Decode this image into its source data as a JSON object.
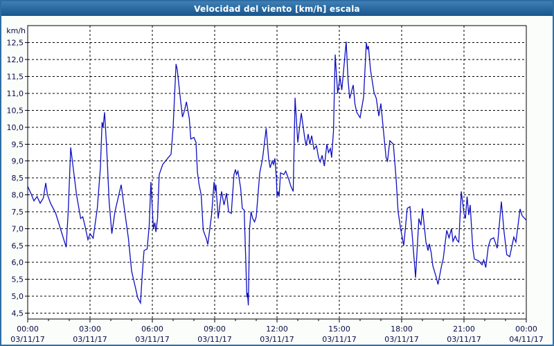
{
  "window": {
    "border_color": "#2e6da4",
    "background": "#fafdfa"
  },
  "chart_data": {
    "type": "line",
    "title": "Velocidad del viento [km/h] escala",
    "ylabel": "km/h",
    "xlabel": "",
    "legend": "none",
    "grid": "dashed-both-axes",
    "plot_bg": "#ffffff",
    "plot_border_color": "#000000",
    "line_color": "#0d0dc0",
    "xlim_hours": [
      0,
      24
    ],
    "ylim": [
      4.5,
      12.5
    ],
    "ytick_step": 0.5,
    "ytick_labels": [
      "4,5",
      "5,0",
      "5,5",
      "6,0",
      "6,5",
      "7,0",
      "7,5",
      "8,0",
      "8,5",
      "9,0",
      "9,5",
      "10,0",
      "10,5",
      "11,0",
      "11,5",
      "12,0",
      "12,5"
    ],
    "xticks": [
      {
        "t": 0,
        "time": "00:00",
        "date": "03/11/17"
      },
      {
        "t": 3,
        "time": "03:00",
        "date": "03/11/17"
      },
      {
        "t": 6,
        "time": "06:00",
        "date": "03/11/17"
      },
      {
        "t": 9,
        "time": "09:00",
        "date": "03/11/17"
      },
      {
        "t": 12,
        "time": "12:00",
        "date": "03/11/17"
      },
      {
        "t": 15,
        "time": "15:00",
        "date": "03/11/17"
      },
      {
        "t": 18,
        "time": "18:00",
        "date": "03/11/17"
      },
      {
        "t": 21,
        "time": "21:00",
        "date": "03/11/17"
      },
      {
        "t": 24,
        "time": "00:00",
        "date": "04/11/17"
      }
    ],
    "series": [
      {
        "name": "Velocidad del viento",
        "points": [
          [
            0,
            8.25
          ],
          [
            0.15,
            8.05
          ],
          [
            0.3,
            7.82
          ],
          [
            0.45,
            7.95
          ],
          [
            0.6,
            7.75
          ],
          [
            0.75,
            7.9
          ],
          [
            0.87,
            8.35
          ],
          [
            0.95,
            8.0
          ],
          [
            1.1,
            7.75
          ],
          [
            1.35,
            7.45
          ],
          [
            1.6,
            6.95
          ],
          [
            1.85,
            6.45
          ],
          [
            1.95,
            7.5
          ],
          [
            2.07,
            9.4
          ],
          [
            2.2,
            8.75
          ],
          [
            2.35,
            8.0
          ],
          [
            2.55,
            7.3
          ],
          [
            2.65,
            7.35
          ],
          [
            2.75,
            7.1
          ],
          [
            2.9,
            6.67
          ],
          [
            3.0,
            6.85
          ],
          [
            3.15,
            6.72
          ],
          [
            3.35,
            7.6
          ],
          [
            3.5,
            8.8
          ],
          [
            3.58,
            10.15
          ],
          [
            3.63,
            10.0
          ],
          [
            3.7,
            10.44
          ],
          [
            3.8,
            9.4
          ],
          [
            3.92,
            7.8
          ],
          [
            4.05,
            6.85
          ],
          [
            4.2,
            7.5
          ],
          [
            4.35,
            7.9
          ],
          [
            4.5,
            8.3
          ],
          [
            4.65,
            7.6
          ],
          [
            4.85,
            6.7
          ],
          [
            5.0,
            5.75
          ],
          [
            5.15,
            5.35
          ],
          [
            5.3,
            4.95
          ],
          [
            5.43,
            4.8
          ],
          [
            5.52,
            5.7
          ],
          [
            5.6,
            6.35
          ],
          [
            5.75,
            6.4
          ],
          [
            5.85,
            7.1
          ],
          [
            5.93,
            8.38
          ],
          [
            6.05,
            7.0
          ],
          [
            6.12,
            7.18
          ],
          [
            6.17,
            6.9
          ],
          [
            6.25,
            7.3
          ],
          [
            6.33,
            8.6
          ],
          [
            6.5,
            8.9
          ],
          [
            6.7,
            9.05
          ],
          [
            6.9,
            9.2
          ],
          [
            7.0,
            10.0
          ],
          [
            7.14,
            11.87
          ],
          [
            7.2,
            11.7
          ],
          [
            7.33,
            10.95
          ],
          [
            7.45,
            10.3
          ],
          [
            7.55,
            10.5
          ],
          [
            7.64,
            10.75
          ],
          [
            7.78,
            10.25
          ],
          [
            7.85,
            9.65
          ],
          [
            8.0,
            9.7
          ],
          [
            8.1,
            9.55
          ],
          [
            8.17,
            8.67
          ],
          [
            8.25,
            8.3
          ],
          [
            8.35,
            8.0
          ],
          [
            8.45,
            6.95
          ],
          [
            8.6,
            6.7
          ],
          [
            8.67,
            6.53
          ],
          [
            8.85,
            7.4
          ],
          [
            8.97,
            8.38
          ],
          [
            9.02,
            8.1
          ],
          [
            9.06,
            8.3
          ],
          [
            9.17,
            7.3
          ],
          [
            9.33,
            8.1
          ],
          [
            9.45,
            7.7
          ],
          [
            9.57,
            8.05
          ],
          [
            9.67,
            7.5
          ],
          [
            9.8,
            7.45
          ],
          [
            9.93,
            8.6
          ],
          [
            10.0,
            8.75
          ],
          [
            10.05,
            8.6
          ],
          [
            10.12,
            8.7
          ],
          [
            10.25,
            8.2
          ],
          [
            10.33,
            7.6
          ],
          [
            10.42,
            7.55
          ],
          [
            10.5,
            6.0
          ],
          [
            10.55,
            4.97
          ],
          [
            10.58,
            5.1
          ],
          [
            10.62,
            4.73
          ],
          [
            10.68,
            7.0
          ],
          [
            10.75,
            7.5
          ],
          [
            10.83,
            7.3
          ],
          [
            10.92,
            7.2
          ],
          [
            11.0,
            7.35
          ],
          [
            11.17,
            8.65
          ],
          [
            11.3,
            9.05
          ],
          [
            11.48,
            9.97
          ],
          [
            11.6,
            9.05
          ],
          [
            11.67,
            8.8
          ],
          [
            11.77,
            9.0
          ],
          [
            11.83,
            8.9
          ],
          [
            11.9,
            9.08
          ],
          [
            11.97,
            8.5
          ],
          [
            12.0,
            7.95
          ],
          [
            12.05,
            8.1
          ],
          [
            12.1,
            7.95
          ],
          [
            12.17,
            8.65
          ],
          [
            12.33,
            8.6
          ],
          [
            12.42,
            8.7
          ],
          [
            12.57,
            8.45
          ],
          [
            12.67,
            8.25
          ],
          [
            12.78,
            8.1
          ],
          [
            12.87,
            10.87
          ],
          [
            12.95,
            10.05
          ],
          [
            13.0,
            9.55
          ],
          [
            13.17,
            10.42
          ],
          [
            13.33,
            9.7
          ],
          [
            13.4,
            9.45
          ],
          [
            13.5,
            9.8
          ],
          [
            13.58,
            9.5
          ],
          [
            13.67,
            9.75
          ],
          [
            13.78,
            9.35
          ],
          [
            13.9,
            9.45
          ],
          [
            14.0,
            9.1
          ],
          [
            14.08,
            8.97
          ],
          [
            14.17,
            9.17
          ],
          [
            14.28,
            8.85
          ],
          [
            14.4,
            9.5
          ],
          [
            14.48,
            9.25
          ],
          [
            14.57,
            9.37
          ],
          [
            14.63,
            9.1
          ],
          [
            14.72,
            9.9
          ],
          [
            14.8,
            12.15
          ],
          [
            14.92,
            11.0
          ],
          [
            15.03,
            11.48
          ],
          [
            15.12,
            11.1
          ],
          [
            15.33,
            12.53
          ],
          [
            15.42,
            11.4
          ],
          [
            15.5,
            10.85
          ],
          [
            15.67,
            11.25
          ],
          [
            15.75,
            10.7
          ],
          [
            15.83,
            10.45
          ],
          [
            16.0,
            10.28
          ],
          [
            16.17,
            10.9
          ],
          [
            16.3,
            12.5
          ],
          [
            16.35,
            12.3
          ],
          [
            16.4,
            12.4
          ],
          [
            16.5,
            11.7
          ],
          [
            16.67,
            11.03
          ],
          [
            16.78,
            10.85
          ],
          [
            16.9,
            10.33
          ],
          [
            17.0,
            10.7
          ],
          [
            17.1,
            10.05
          ],
          [
            17.25,
            9.1
          ],
          [
            17.32,
            9.0
          ],
          [
            17.43,
            9.6
          ],
          [
            17.6,
            9.5
          ],
          [
            17.73,
            8.5
          ],
          [
            17.83,
            7.5
          ],
          [
            17.95,
            7.0
          ],
          [
            18.1,
            6.5
          ],
          [
            18.27,
            7.6
          ],
          [
            18.4,
            7.65
          ],
          [
            18.67,
            5.55
          ],
          [
            18.83,
            7.3
          ],
          [
            18.93,
            7.1
          ],
          [
            19.0,
            7.6
          ],
          [
            19.17,
            6.6
          ],
          [
            19.27,
            6.35
          ],
          [
            19.33,
            6.55
          ],
          [
            19.42,
            6.3
          ],
          [
            19.5,
            5.9
          ],
          [
            19.67,
            5.55
          ],
          [
            19.75,
            5.35
          ],
          [
            19.92,
            5.9
          ],
          [
            20.0,
            6.1
          ],
          [
            20.17,
            6.95
          ],
          [
            20.28,
            6.73
          ],
          [
            20.4,
            7.0
          ],
          [
            20.47,
            6.62
          ],
          [
            20.58,
            6.78
          ],
          [
            20.67,
            6.65
          ],
          [
            20.75,
            6.6
          ],
          [
            20.87,
            8.1
          ],
          [
            21.0,
            7.45
          ],
          [
            21.07,
            7.3
          ],
          [
            21.15,
            7.95
          ],
          [
            21.23,
            7.4
          ],
          [
            21.3,
            7.7
          ],
          [
            21.42,
            6.45
          ],
          [
            21.5,
            6.1
          ],
          [
            21.7,
            6.05
          ],
          [
            21.87,
            5.93
          ],
          [
            21.95,
            6.07
          ],
          [
            22.05,
            5.85
          ],
          [
            22.17,
            6.47
          ],
          [
            22.28,
            6.68
          ],
          [
            22.43,
            6.73
          ],
          [
            22.6,
            6.42
          ],
          [
            22.8,
            7.8
          ],
          [
            22.93,
            6.9
          ],
          [
            23.06,
            6.23
          ],
          [
            23.2,
            6.17
          ],
          [
            23.4,
            6.75
          ],
          [
            23.5,
            6.6
          ],
          [
            23.7,
            7.58
          ],
          [
            23.8,
            7.38
          ],
          [
            24.0,
            7.25
          ]
        ]
      }
    ]
  }
}
